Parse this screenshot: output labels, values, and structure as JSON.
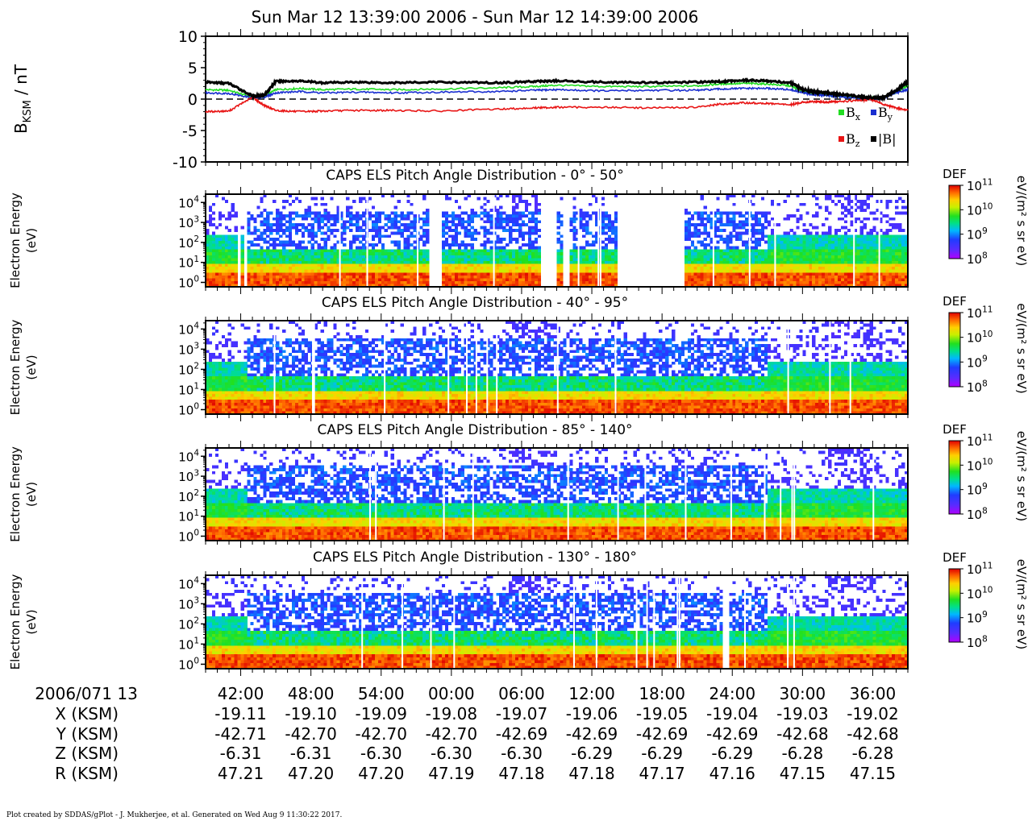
{
  "title": "Sun Mar 12 13:39:00 2006 - Sun Mar 12 14:39:00 2006",
  "footer": "Plot created by SDDAS/gPlot - J. Mukherjee, et al.  Generated on Wed Aug 9 11:30:22 2017.",
  "colors": {
    "bx": "#22dd22",
    "by": "#1a2fd0",
    "bz": "#e81515",
    "bmag": "#000000"
  },
  "chart_data": [
    {
      "type": "line",
      "panel": "magnetic-field",
      "ylabel_main": "B",
      "ylabel_sub": "KSM",
      "ylabel_unit": " / nT",
      "ylim": [
        -10,
        10
      ],
      "yticks": [
        "10",
        "5",
        "0",
        "-5",
        "-10"
      ],
      "time_minutes": [
        0,
        2,
        4,
        5,
        6,
        8,
        10,
        13,
        16,
        20,
        25,
        28,
        30,
        34,
        38,
        42,
        44,
        46,
        48,
        50,
        51,
        52,
        53,
        54,
        56,
        57,
        58,
        59,
        60
      ],
      "series": [
        {
          "name": "Bx",
          "label_main": "B",
          "label_sub": "x",
          "color": "#22dd22",
          "values": [
            1.5,
            1.4,
            0.3,
            0.4,
            1.5,
            1.7,
            1.5,
            1.6,
            1.5,
            1.6,
            1.8,
            2.0,
            2.2,
            2.0,
            2.0,
            2.1,
            2.4,
            2.5,
            2.4,
            2.1,
            1.2,
            1.0,
            0.8,
            0.5,
            0.2,
            0.1,
            0.3,
            1.2,
            2.2
          ]
        },
        {
          "name": "By",
          "label_main": "B",
          "label_sub": "y",
          "color": "#1a2fd0",
          "values": [
            1.0,
            0.9,
            0.2,
            0.3,
            1.0,
            1.2,
            1.0,
            1.1,
            1.0,
            1.1,
            1.2,
            1.4,
            1.5,
            1.3,
            1.4,
            1.4,
            1.6,
            1.7,
            1.7,
            1.5,
            1.0,
            0.7,
            0.6,
            0.4,
            0.1,
            0.1,
            0.2,
            1.0,
            1.5
          ]
        },
        {
          "name": "Bz",
          "label_main": "B",
          "label_sub": "z",
          "color": "#e81515",
          "values": [
            -2.0,
            -1.9,
            0.3,
            -1.0,
            -1.8,
            -2.0,
            -1.9,
            -1.8,
            -1.8,
            -1.9,
            -1.6,
            -1.4,
            -1.3,
            -1.3,
            -1.4,
            -1.3,
            -0.8,
            -0.6,
            -0.7,
            -0.9,
            -0.5,
            -0.4,
            -0.5,
            -0.4,
            -0.2,
            -0.1,
            -0.9,
            -1.4,
            -1.8
          ]
        },
        {
          "name": "|B|",
          "label_main": "|B|",
          "label_sub": "",
          "color": "#000000",
          "values": [
            2.7,
            2.5,
            0.5,
            0.6,
            2.8,
            2.9,
            2.6,
            2.7,
            2.6,
            2.7,
            2.6,
            2.8,
            2.9,
            2.7,
            2.6,
            2.7,
            2.8,
            3.0,
            2.9,
            2.6,
            1.5,
            1.2,
            1.0,
            0.8,
            0.4,
            0.2,
            0.3,
            1.4,
            2.8
          ]
        }
      ],
      "zero_line": "dashed"
    },
    {
      "type": "heatmap",
      "panel": "pad-0-50",
      "title": "CAPS ELS Pitch Angle Distribution - 0° - 50°",
      "ylabel": [
        "Electron Energy",
        "(eV)"
      ],
      "yscale": "log",
      "ylim": [
        0.6,
        26000
      ],
      "yticks": [
        {
          "base": "10",
          "exp": "4"
        },
        {
          "base": "10",
          "exp": "3"
        },
        {
          "base": "10",
          "exp": "2"
        },
        {
          "base": "10",
          "exp": "1"
        },
        {
          "base": "10",
          "exp": "0"
        }
      ],
      "gaps_minutes": [
        [
          2.1,
          2.2
        ],
        [
          2.8,
          2.9
        ],
        [
          3.4,
          3.6
        ],
        [
          19.2,
          20.2
        ],
        [
          28.7,
          30.1
        ],
        [
          30.6,
          31.0
        ],
        [
          35.3,
          41.0
        ]
      ],
      "colorbar": {
        "title": "DEF",
        "unit": "eV/(m² s sr eV)",
        "ticks": [
          {
            "base": "10",
            "exp": "11"
          },
          {
            "base": "10",
            "exp": "10"
          },
          {
            "base": "10",
            "exp": "9"
          },
          {
            "base": "10",
            "exp": "8"
          }
        ]
      }
    },
    {
      "type": "heatmap",
      "panel": "pad-40-95",
      "title": "CAPS ELS Pitch Angle Distribution - 40° - 95°",
      "ylabel": [
        "Electron Energy",
        "(eV)"
      ],
      "yscale": "log",
      "ylim": [
        0.6,
        26000
      ],
      "yticks": [
        {
          "base": "10",
          "exp": "4"
        },
        {
          "base": "10",
          "exp": "3"
        },
        {
          "base": "10",
          "exp": "2"
        },
        {
          "base": "10",
          "exp": "1"
        },
        {
          "base": "10",
          "exp": "0"
        }
      ],
      "gaps_minutes": [],
      "colorbar": {
        "title": "DEF",
        "unit": "eV/(m² s sr eV)",
        "ticks": [
          {
            "base": "10",
            "exp": "11"
          },
          {
            "base": "10",
            "exp": "10"
          },
          {
            "base": "10",
            "exp": "9"
          },
          {
            "base": "10",
            "exp": "8"
          }
        ]
      }
    },
    {
      "type": "heatmap",
      "panel": "pad-85-140",
      "title": "CAPS ELS Pitch Angle Distribution - 85° - 140°",
      "ylabel": [
        "Electron Energy",
        "(eV)"
      ],
      "yscale": "log",
      "ylim": [
        0.6,
        26000
      ],
      "yticks": [
        {
          "base": "10",
          "exp": "4"
        },
        {
          "base": "10",
          "exp": "3"
        },
        {
          "base": "10",
          "exp": "2"
        },
        {
          "base": "10",
          "exp": "1"
        },
        {
          "base": "10",
          "exp": "0"
        }
      ],
      "gaps_minutes": [],
      "colorbar": {
        "title": "DEF",
        "unit": "eV/(m² s sr eV)",
        "ticks": [
          {
            "base": "10",
            "exp": "11"
          },
          {
            "base": "10",
            "exp": "10"
          },
          {
            "base": "10",
            "exp": "9"
          },
          {
            "base": "10",
            "exp": "8"
          }
        ]
      }
    },
    {
      "type": "heatmap",
      "panel": "pad-130-180",
      "title": "CAPS ELS Pitch Angle Distribution - 130° - 180°",
      "ylabel": [
        "Electron Energy",
        "(eV)"
      ],
      "yscale": "log",
      "ylim": [
        0.6,
        26000
      ],
      "yticks": [
        {
          "base": "10",
          "exp": "4"
        },
        {
          "base": "10",
          "exp": "3"
        },
        {
          "base": "10",
          "exp": "2"
        },
        {
          "base": "10",
          "exp": "1"
        },
        {
          "base": "10",
          "exp": "0"
        }
      ],
      "gaps_minutes": [
        [
          44.3,
          44.8
        ]
      ],
      "colorbar": {
        "title": "DEF",
        "unit": "eV/(m² s sr eV)",
        "ticks": [
          {
            "base": "10",
            "exp": "11"
          },
          {
            "base": "10",
            "exp": "10"
          },
          {
            "base": "10",
            "exp": "9"
          },
          {
            "base": "10",
            "exp": "8"
          }
        ]
      }
    }
  ],
  "x_axis": {
    "start_label": "2006/071 13",
    "row_labels": [
      "X (KSM)",
      "Y (KSM)",
      "Z (KSM)",
      "R (KSM)"
    ],
    "ticks": [
      {
        "minute": 3,
        "time": "42:00",
        "x": "-19.11",
        "y": "-42.71",
        "z": "-6.31",
        "r": "47.21"
      },
      {
        "minute": 9,
        "time": "48:00",
        "x": "-19.10",
        "y": "-42.70",
        "z": "-6.31",
        "r": "47.20"
      },
      {
        "minute": 15,
        "time": "54:00",
        "x": "-19.09",
        "y": "-42.70",
        "z": "-6.30",
        "r": "47.20"
      },
      {
        "minute": 21,
        "time": "00:00",
        "x": "-19.08",
        "y": "-42.70",
        "z": "-6.30",
        "r": "47.19"
      },
      {
        "minute": 27,
        "time": "06:00",
        "x": "-19.07",
        "y": "-42.69",
        "z": "-6.30",
        "r": "47.18"
      },
      {
        "minute": 33,
        "time": "12:00",
        "x": "-19.06",
        "y": "-42.69",
        "z": "-6.29",
        "r": "47.18"
      },
      {
        "minute": 39,
        "time": "18:00",
        "x": "-19.05",
        "y": "-42.69",
        "z": "-6.29",
        "r": "47.17"
      },
      {
        "minute": 45,
        "time": "24:00",
        "x": "-19.04",
        "y": "-42.69",
        "z": "-6.29",
        "r": "47.16"
      },
      {
        "minute": 51,
        "time": "30:00",
        "x": "-19.03",
        "y": "-42.68",
        "z": "-6.28",
        "r": "47.15"
      },
      {
        "minute": 57,
        "time": "36:00",
        "x": "-19.02",
        "y": "-42.68",
        "z": "-6.28",
        "r": "47.15"
      }
    ]
  }
}
